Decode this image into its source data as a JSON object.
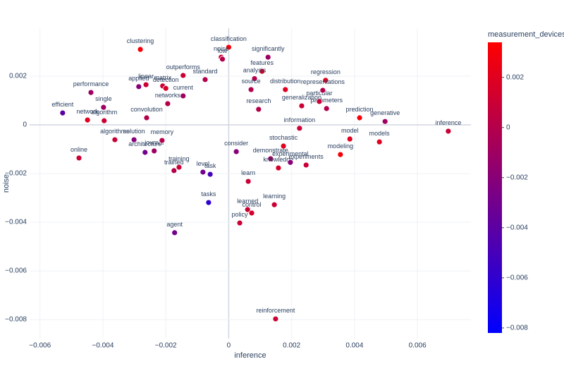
{
  "chart_data": {
    "type": "scatter",
    "x_label": "inference",
    "y_label": "noise",
    "colorbar_title": "measurement_devices",
    "text": [
      "clustering",
      "classification",
      "noise",
      "low",
      "significantly",
      "features",
      "analysis",
      "regression",
      "outperforms",
      "standard",
      "performance",
      "applied",
      "linear",
      "matrix",
      "detection",
      "efficient",
      "network",
      "single",
      "algorithm",
      "algorithms",
      "online",
      "solution",
      "convolution",
      "architecture",
      "journal",
      "memory",
      "training",
      "trained",
      "level",
      "task",
      "tasks",
      "agent",
      "learn",
      "learned",
      "control",
      "policy",
      "learning",
      "reinforcement",
      "stochastic",
      "demonstrate",
      "knowledge",
      "experimental",
      "experiments",
      "modeling",
      "model",
      "models",
      "prediction",
      "generative",
      "inference",
      "information",
      "parameters",
      "particular",
      "research",
      "generalization",
      "representations",
      "distribution",
      "source",
      "consider",
      "current",
      "networks"
    ],
    "x": [
      -0.00281,
      0.0,
      -0.00024,
      -0.0002,
      0.00125,
      0.00106,
      0.00082,
      0.00308,
      -0.00145,
      -0.00075,
      -0.00438,
      -0.00286,
      -0.00263,
      -0.0021,
      -0.002,
      -0.00528,
      -0.00449,
      -0.00398,
      -0.00396,
      -0.00362,
      -0.00476,
      -0.00301,
      -0.00261,
      -0.00266,
      -0.00237,
      -0.00212,
      -0.00158,
      -0.00174,
      -0.00082,
      -0.00059,
      -0.00064,
      -0.00172,
      0.00062,
      0.0006,
      0.00073,
      0.00035,
      0.00145,
      0.00149,
      0.00174,
      0.00133,
      0.00158,
      0.00196,
      0.00246,
      0.00355,
      0.00385,
      0.00479,
      0.00416,
      0.00497,
      0.00698,
      0.00225,
      0.00311,
      0.00288,
      0.00095,
      0.00232,
      0.00299,
      0.0018,
      0.00071,
      0.00024,
      -0.00145,
      -0.00194
    ],
    "y": [
      0.0031,
      0.00319,
      0.00278,
      0.0027,
      0.00278,
      0.0022,
      0.0019,
      0.00183,
      0.00203,
      0.00186,
      0.00133,
      0.00157,
      0.00165,
      0.0016,
      0.0015,
      0.00049,
      0.0002,
      0.00072,
      0.00017,
      -0.00061,
      -0.00136,
      -0.00061,
      0.00029,
      -0.00113,
      -0.00107,
      -0.00064,
      -0.00174,
      -0.00188,
      -0.00194,
      -0.00203,
      -0.00319,
      -0.00443,
      -0.00232,
      -0.00348,
      -0.00362,
      -0.00403,
      -0.00328,
      -0.00797,
      -0.00087,
      -0.00139,
      -0.00177,
      -0.00154,
      -0.00165,
      -0.00122,
      -0.00058,
      -0.0007,
      0.00029,
      0.00014,
      -0.00026,
      -0.00014,
      0.00067,
      0.00096,
      0.00064,
      0.00078,
      0.00142,
      0.00145,
      0.00145,
      -0.0011,
      0.00119,
      0.00087
    ],
    "colors": [
      0.003,
      0.003,
      0.001,
      0.0,
      -0.001,
      0.0015,
      0.0,
      0.002,
      0.001,
      0.0,
      -0.001,
      -0.002,
      0.001,
      0.001,
      0.0015,
      -0.004,
      0.002,
      -0.001,
      0.001,
      0.001,
      0.001,
      -0.002,
      0.0,
      -0.003,
      -0.001,
      0.0,
      0.001,
      0.0,
      -0.003,
      -0.005,
      -0.006,
      -0.003,
      0.001,
      0.001,
      0.0015,
      0.001,
      0.001,
      0.001,
      0.002,
      -0.001,
      0.0015,
      -0.002,
      0.001,
      0.003,
      0.002,
      0.002,
      0.003,
      -0.001,
      0.001,
      0.001,
      0.0,
      0.001,
      0.0,
      0.001,
      0.0,
      0.002,
      0.0,
      -0.002,
      -0.001,
      0.0
    ],
    "colorscale": [
      "#0000ff",
      "#ff0000"
    ],
    "clim": [
      -0.0082,
      0.0034
    ],
    "colorbar_ticks": [
      {
        "value": -0.008,
        "label": "−0.008"
      },
      {
        "value": -0.006,
        "label": "−0.006"
      },
      {
        "value": -0.004,
        "label": "−0.004"
      },
      {
        "value": -0.002,
        "label": "−0.002"
      },
      0,
      0.002
    ],
    "xlim": [
      -0.00633,
      0.0077
    ],
    "ylim": [
      -0.00878,
      0.00397
    ],
    "xticks": [
      {
        "value": -0.006,
        "label": "−0.006"
      },
      {
        "value": -0.004,
        "label": "−0.004"
      },
      {
        "value": -0.002,
        "label": "−0.002"
      },
      0,
      0.002,
      0.004,
      0.006
    ],
    "yticks": [
      {
        "value": -0.008,
        "label": "−0.008"
      },
      {
        "value": -0.006,
        "label": "−0.006"
      },
      {
        "value": -0.004,
        "label": "−0.004"
      },
      {
        "value": -0.002,
        "label": "−0.002"
      },
      0,
      0.002
    ],
    "grid": true
  }
}
